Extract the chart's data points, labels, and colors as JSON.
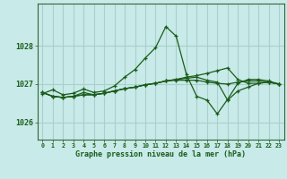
{
  "background_color": "#c8eae8",
  "grid_color": "#a8d0ce",
  "line_color": "#1a5c1a",
  "title": "Graphe pression niveau de la mer (hPa)",
  "xlim": [
    -0.5,
    23.5
  ],
  "ylim": [
    1025.55,
    1029.1
  ],
  "yticks": [
    1026,
    1027,
    1028
  ],
  "xticks": [
    0,
    1,
    2,
    3,
    4,
    5,
    6,
    7,
    8,
    9,
    10,
    11,
    12,
    13,
    14,
    15,
    16,
    17,
    18,
    19,
    20,
    21,
    22,
    23
  ],
  "series": [
    [
      1026.75,
      1026.85,
      1026.72,
      1026.76,
      1026.87,
      1026.78,
      1026.82,
      1026.95,
      1027.18,
      1027.38,
      1027.68,
      1027.95,
      1028.5,
      1028.25,
      1027.25,
      1026.68,
      1026.58,
      1026.22,
      1026.6,
      1027.02,
      1027.12,
      1027.12,
      1027.08,
      1027.0
    ],
    [
      1026.78,
      1026.68,
      1026.65,
      1026.68,
      1026.72,
      1026.72,
      1026.76,
      1026.82,
      1026.88,
      1026.92,
      1026.98,
      1027.02,
      1027.08,
      1027.12,
      1027.18,
      1027.22,
      1027.28,
      1027.35,
      1027.42,
      1027.12,
      1027.02,
      1027.02,
      1027.05,
      1027.0
    ],
    [
      1026.78,
      1026.68,
      1026.65,
      1026.68,
      1026.72,
      1026.72,
      1026.76,
      1026.82,
      1026.88,
      1026.92,
      1026.98,
      1027.02,
      1027.08,
      1027.12,
      1027.15,
      1027.18,
      1027.1,
      1027.05,
      1026.58,
      1026.82,
      1026.92,
      1027.02,
      1027.05,
      1027.0
    ],
    [
      1026.78,
      1026.68,
      1026.65,
      1026.68,
      1026.78,
      1026.72,
      1026.76,
      1026.82,
      1026.88,
      1026.92,
      1026.98,
      1027.02,
      1027.08,
      1027.1,
      1027.1,
      1027.1,
      1027.05,
      1027.02,
      1027.0,
      1027.05,
      1027.08,
      1027.08,
      1027.05,
      1027.0
    ]
  ]
}
